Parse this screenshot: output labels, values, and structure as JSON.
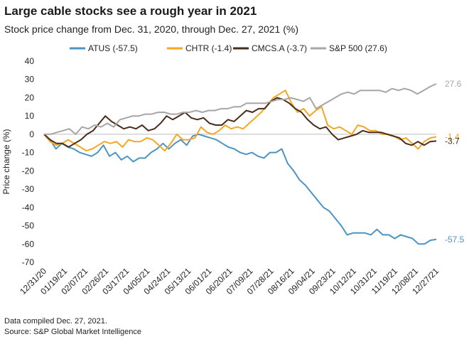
{
  "title": "Large cable stocks see a rough year in 2021",
  "subtitle": "Stock price change from Dec. 31, 2020, through Dec. 27, 2021 (%)",
  "footnotes": [
    "Data compiled Dec. 27, 2021.",
    "Source: S&P Global Market Intelligence"
  ],
  "chart_data": {
    "type": "line",
    "ylabel": "Price change (%)",
    "ylim": [
      -70,
      40
    ],
    "yticks": [
      40,
      30,
      20,
      10,
      0,
      -10,
      -20,
      -30,
      -40,
      -50,
      -60,
      -70
    ],
    "xlabels": [
      "12/31/20",
      "01/19/21",
      "02/07/21",
      "02/26/21",
      "03/17/21",
      "04/05/21",
      "04/24/21",
      "05/13/21",
      "06/01/21",
      "06/20/21",
      "07/09/21",
      "07/28/21",
      "08/16/21",
      "09/04/21",
      "09/23/21",
      "10/12/21",
      "10/31/21",
      "11/19/21",
      "12/08/21",
      "12/27/21"
    ],
    "grid": false,
    "legend_position": "top",
    "series": [
      {
        "name": "ATUS (-57.5)",
        "end_label": "-57.5",
        "color": "#4b94c3",
        "values": [
          0,
          -3,
          -8,
          -5,
          -7,
          -8,
          -10,
          -11,
          -12,
          -10,
          -6,
          -12,
          -10,
          -14,
          -12,
          -15,
          -13,
          -13,
          -10,
          -8,
          -5,
          -8,
          -5,
          -3,
          -6,
          -1,
          0,
          -1,
          -2,
          -3,
          -5,
          -7,
          -8,
          -10,
          -11,
          -10,
          -12,
          -13,
          -10,
          -10,
          -8,
          -16,
          -20,
          -25,
          -28,
          -32,
          -36,
          -40,
          -42,
          -46,
          -50,
          -55,
          -54,
          -54,
          -54,
          -55,
          -52,
          -55,
          -55,
          -57,
          -55,
          -56,
          -57,
          -60,
          -60,
          -58,
          -57.5
        ]
      },
      {
        "name": "CHTR (-1.4)",
        "end_label": "-1.4",
        "color": "#f5a623",
        "values": [
          0,
          -4,
          -6,
          -5,
          -3,
          -5,
          -7,
          -9,
          -8,
          -6,
          -4,
          -5,
          -4,
          -7,
          -3,
          -4,
          -4,
          -2,
          -3,
          -6,
          -9,
          -5,
          0,
          -3,
          -3,
          -2,
          4,
          1,
          0,
          2,
          5,
          3,
          4,
          3,
          6,
          9,
          12,
          16,
          20,
          22,
          24,
          17,
          12,
          14,
          10,
          13,
          15,
          5,
          3,
          4,
          2,
          0,
          5,
          4,
          2,
          2,
          0,
          0,
          -1,
          -3,
          -2,
          -5,
          -8,
          -4,
          -2,
          -1.4
        ]
      },
      {
        "name": "CMCS.A (-3.7)",
        "end_label": "-3.7",
        "color": "#4a2c1a",
        "values": [
          0,
          -3,
          -5,
          -5,
          -7,
          -5,
          -3,
          0,
          2,
          6,
          10,
          7,
          5,
          3,
          4,
          3,
          5,
          2,
          3,
          6,
          10,
          8,
          10,
          12,
          9,
          8,
          9,
          6,
          5,
          5,
          8,
          7,
          10,
          13,
          12,
          14,
          14,
          18,
          20,
          19,
          17,
          14,
          12,
          8,
          5,
          3,
          4,
          0,
          -3,
          -2,
          -1,
          0,
          2,
          1,
          1,
          1,
          0,
          -1,
          -2,
          -5,
          -6,
          -4,
          -6,
          -4,
          -3.7
        ]
      },
      {
        "name": "S&P 500 (27.6)",
        "end_label": "27.6",
        "color": "#a6a6a6",
        "values": [
          0,
          0,
          1,
          2,
          3,
          0,
          4,
          3,
          5,
          4,
          6,
          4,
          8,
          9,
          10,
          10,
          11,
          11,
          12,
          12,
          11,
          11,
          12,
          12,
          13,
          12,
          13,
          13,
          14,
          14,
          15,
          15,
          17,
          17,
          17,
          17,
          18,
          19,
          19,
          20,
          19,
          18,
          20,
          14,
          16,
          18,
          20,
          22,
          23,
          22,
          24,
          24,
          24,
          24,
          23,
          25,
          24,
          25,
          24,
          22,
          24,
          26,
          27.6
        ]
      }
    ]
  }
}
